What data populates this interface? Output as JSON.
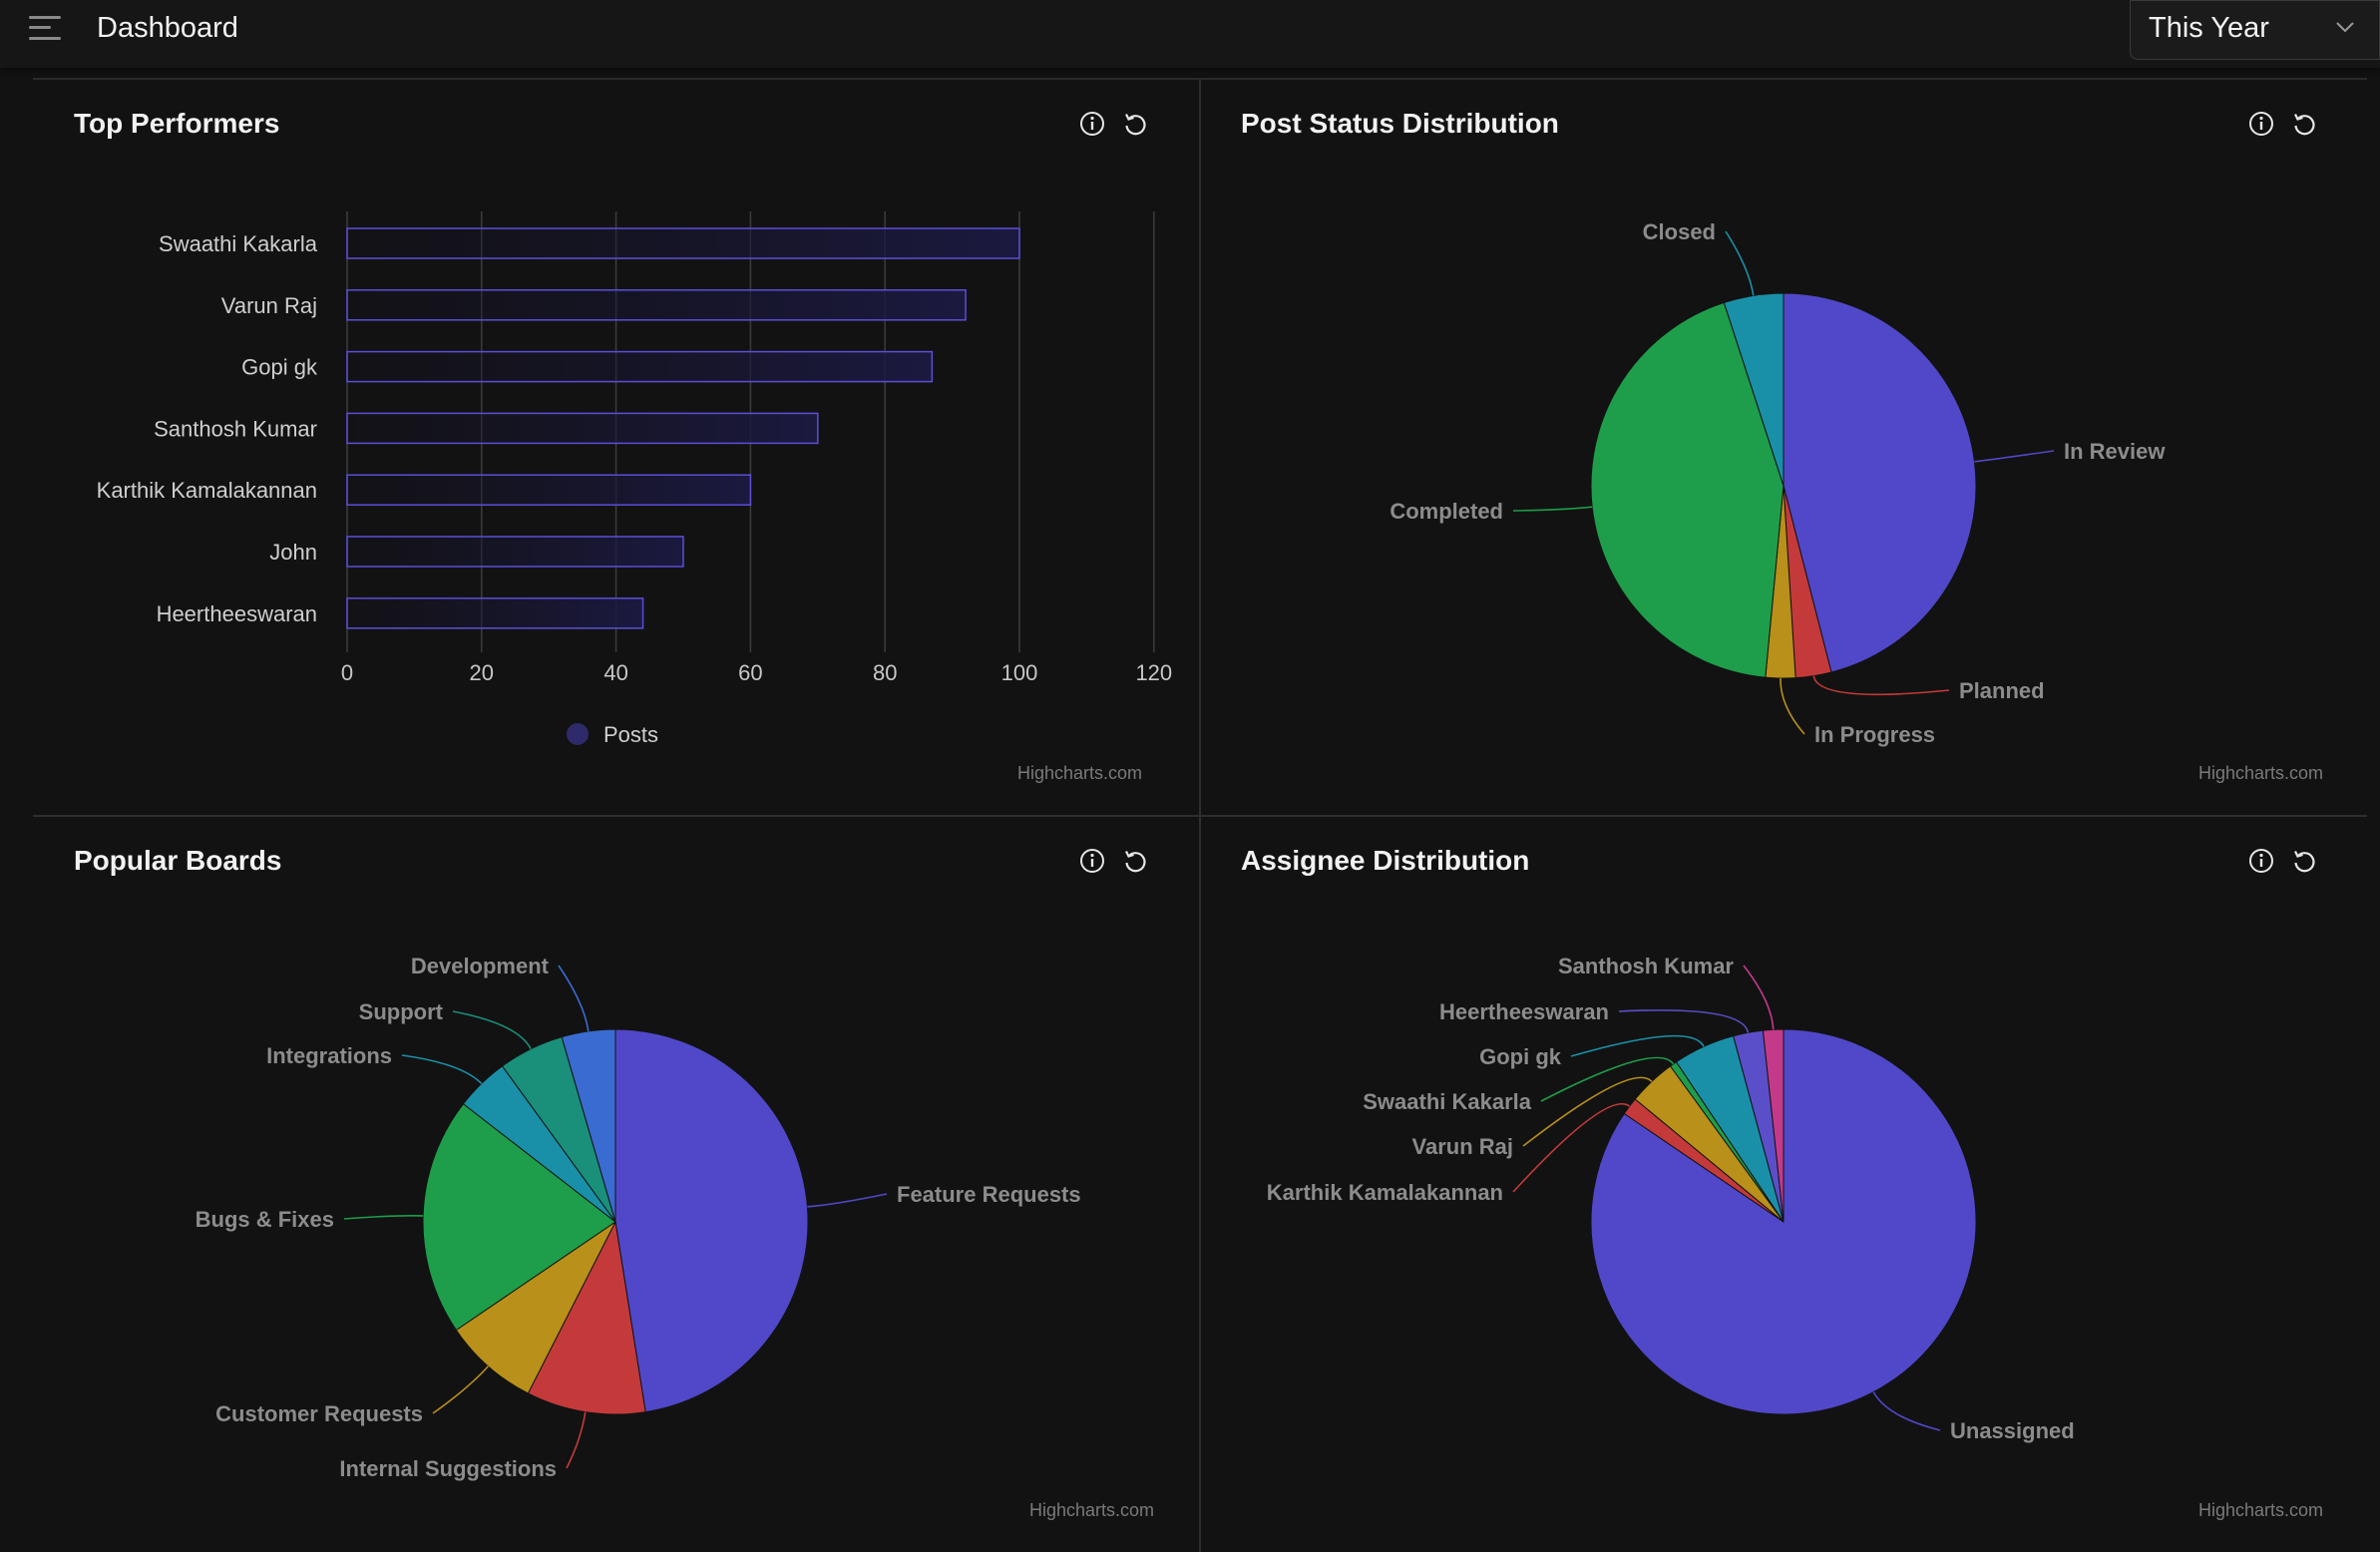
{
  "header": {
    "title": "Dashboard",
    "period": "This Year",
    "icons": {
      "menu": "hamburger-menu-icon",
      "chevron": "chevron-down-icon"
    }
  },
  "panels": {
    "top_performers": {
      "title": "Top Performers",
      "credit": "Highcharts.com"
    },
    "post_status": {
      "title": "Post Status Distribution",
      "credit": "Highcharts.com"
    },
    "popular_boards": {
      "title": "Popular Boards",
      "credit": "Highcharts.com"
    },
    "assignee": {
      "title": "Assignee Distribution",
      "credit": "Highcharts.com"
    }
  },
  "panel_icons": {
    "info": "info-icon",
    "reset": "reset-icon"
  },
  "colors": {
    "background": "#121212",
    "bar_border": "#5a4fd6",
    "purple": "#5048c8",
    "green": "#1e9e4a",
    "teal": "#1a90a8",
    "red": "#c43a3a",
    "gold": "#b8901a",
    "blue": "#3a6bd0",
    "darkteal": "#1a8f7a",
    "pink": "#c43a8a"
  },
  "chart_data": [
    {
      "type": "bar",
      "orientation": "horizontal",
      "categories": [
        "Swaathi Kakarla",
        "Varun Raj",
        "Gopi gk",
        "Santhosh Kumar",
        "Karthik Kamalakannan",
        "John",
        "Heertheeswaran"
      ],
      "series": [
        {
          "name": "Posts",
          "values": [
            100,
            92,
            87,
            70,
            60,
            50,
            44
          ]
        }
      ],
      "xlim": [
        0,
        120
      ],
      "xticks": [
        0,
        20,
        40,
        60,
        80,
        100,
        120
      ],
      "grid": true,
      "legend": "bottom-center"
    },
    {
      "type": "pie",
      "slices": [
        {
          "label": "In Review",
          "value": 46,
          "color": "#5048c8"
        },
        {
          "label": "Planned",
          "value": 3,
          "color": "#c43a3a"
        },
        {
          "label": "In Progress",
          "value": 2.5,
          "color": "#b8901a"
        },
        {
          "label": "Completed",
          "value": 43.5,
          "color": "#1e9e4a"
        },
        {
          "label": "Closed",
          "value": 5,
          "color": "#1a90a8"
        }
      ]
    },
    {
      "type": "pie",
      "slices": [
        {
          "label": "Feature Requests",
          "value": 47.5,
          "color": "#5048c8"
        },
        {
          "label": "Internal Suggestions",
          "value": 10,
          "color": "#c43a3a"
        },
        {
          "label": "Customer Requests",
          "value": 8,
          "color": "#b8901a"
        },
        {
          "label": "Bugs & Fixes",
          "value": 20,
          "color": "#1e9e4a"
        },
        {
          "label": "Integrations",
          "value": 4.5,
          "color": "#1a90a8"
        },
        {
          "label": "Support",
          "value": 5.5,
          "color": "#1a8f7a"
        },
        {
          "label": "Development",
          "value": 4.5,
          "color": "#3a6bd0"
        }
      ]
    },
    {
      "type": "pie",
      "slices": [
        {
          "label": "Unassigned",
          "value": 84.5,
          "color": "#5048c8"
        },
        {
          "label": "Karthik Kamalakannan",
          "value": 1.5,
          "color": "#c43a3a"
        },
        {
          "label": "Varun Raj",
          "value": 4,
          "color": "#b8901a"
        },
        {
          "label": "Swaathi Kakarla",
          "value": 0.6,
          "color": "#1e9e4a"
        },
        {
          "label": "Gopi gk",
          "value": 5.2,
          "color": "#1a90a8"
        },
        {
          "label": "Heertheeswaran",
          "value": 2.5,
          "color": "#5a4fc8"
        },
        {
          "label": "Santhosh Kumar",
          "value": 1.7,
          "color": "#c43a8a"
        }
      ]
    }
  ]
}
